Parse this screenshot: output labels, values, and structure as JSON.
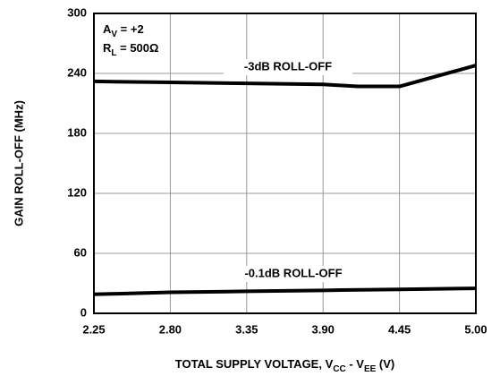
{
  "chart_data": {
    "type": "line",
    "xlabel": [
      "TOTAL SUPPLY VOLTAGE, V",
      "CC",
      " - V",
      "EE",
      " (V)"
    ],
    "ylabel": "GAIN ROLL-OFF (MHz)",
    "annotations": [
      [
        "A",
        "V",
        " = +2"
      ],
      [
        "R",
        "L",
        " = 500Ω"
      ]
    ],
    "xlim": [
      2.25,
      5.0
    ],
    "ylim": [
      0,
      300
    ],
    "xticks": [
      2.25,
      {
        "value": 2.8,
        "label": "2.80"
      },
      3.35,
      {
        "value": 3.9,
        "label": "3.90"
      },
      4.45,
      {
        "value": 5.0,
        "label": "5.00"
      }
    ],
    "yticks": [
      0,
      60,
      120,
      180,
      240,
      300
    ],
    "grid": true,
    "series": [
      {
        "name": "-3dB ROLL-OFF",
        "color": "#000000",
        "x": [
          2.25,
          2.8,
          3.35,
          3.9,
          4.15,
          4.45,
          5.0
        ],
        "values": [
          232,
          231,
          230,
          229,
          227,
          227,
          248
        ]
      },
      {
        "name": "-0.1dB ROLL-OFF",
        "color": "#000000",
        "x": [
          2.25,
          2.8,
          3.35,
          3.9,
          4.45,
          5.0
        ],
        "values": [
          19,
          21,
          22,
          23,
          24,
          25
        ]
      }
    ]
  }
}
